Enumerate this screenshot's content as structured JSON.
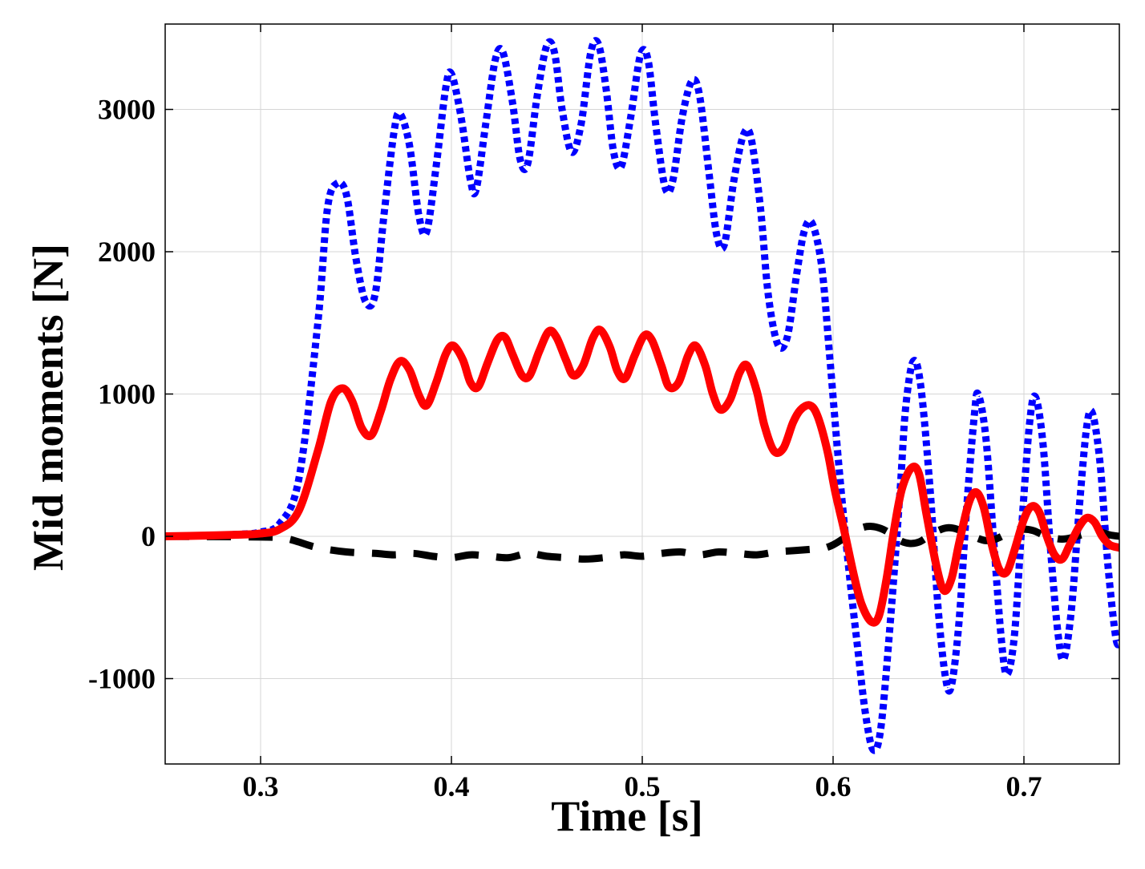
{
  "chart_data": {
    "type": "line",
    "title": "",
    "xlabel": "Time [s]",
    "ylabel": "Mid moments [N]",
    "xlim": [
      0.25,
      0.75
    ],
    "ylim": [
      -1600,
      3600
    ],
    "xticks": [
      0.3,
      0.4,
      0.5,
      0.6,
      0.7
    ],
    "xtick_labels": [
      "0.3",
      "0.4",
      "0.5",
      "0.6",
      "0.7"
    ],
    "yticks": [
      -1000,
      0,
      1000,
      2000,
      3000
    ],
    "ytick_labels": [
      "-1000",
      "0",
      "1000",
      "2000",
      "3000"
    ],
    "grid": true,
    "legend": "none",
    "series": [
      {
        "name": "blue dotted",
        "color": "#0000ff",
        "style": "dotted",
        "points": [
          [
            0.25,
            0
          ],
          [
            0.27,
            5
          ],
          [
            0.29,
            15
          ],
          [
            0.3,
            30
          ],
          [
            0.31,
            90
          ],
          [
            0.32,
            400
          ],
          [
            0.33,
            1500
          ],
          [
            0.335,
            2300
          ],
          [
            0.34,
            2480
          ],
          [
            0.345,
            2400
          ],
          [
            0.35,
            1950
          ],
          [
            0.355,
            1650
          ],
          [
            0.36,
            1700
          ],
          [
            0.365,
            2300
          ],
          [
            0.37,
            2850
          ],
          [
            0.373,
            2970
          ],
          [
            0.378,
            2750
          ],
          [
            0.383,
            2250
          ],
          [
            0.387,
            2140
          ],
          [
            0.392,
            2600
          ],
          [
            0.397,
            3150
          ],
          [
            0.4,
            3250
          ],
          [
            0.405,
            2950
          ],
          [
            0.41,
            2500
          ],
          [
            0.413,
            2440
          ],
          [
            0.418,
            2900
          ],
          [
            0.423,
            3350
          ],
          [
            0.427,
            3400
          ],
          [
            0.432,
            3050
          ],
          [
            0.436,
            2650
          ],
          [
            0.44,
            2620
          ],
          [
            0.445,
            3100
          ],
          [
            0.45,
            3450
          ],
          [
            0.454,
            3400
          ],
          [
            0.458,
            3000
          ],
          [
            0.463,
            2700
          ],
          [
            0.468,
            2900
          ],
          [
            0.473,
            3400
          ],
          [
            0.477,
            3460
          ],
          [
            0.481,
            3150
          ],
          [
            0.485,
            2700
          ],
          [
            0.489,
            2600
          ],
          [
            0.494,
            2950
          ],
          [
            0.499,
            3380
          ],
          [
            0.503,
            3350
          ],
          [
            0.507,
            2900
          ],
          [
            0.512,
            2450
          ],
          [
            0.516,
            2500
          ],
          [
            0.521,
            2950
          ],
          [
            0.526,
            3200
          ],
          [
            0.53,
            3100
          ],
          [
            0.535,
            2550
          ],
          [
            0.539,
            2120
          ],
          [
            0.543,
            2050
          ],
          [
            0.548,
            2500
          ],
          [
            0.553,
            2820
          ],
          [
            0.557,
            2800
          ],
          [
            0.562,
            2300
          ],
          [
            0.566,
            1700
          ],
          [
            0.571,
            1350
          ],
          [
            0.576,
            1400
          ],
          [
            0.581,
            1850
          ],
          [
            0.585,
            2150
          ],
          [
            0.589,
            2200
          ],
          [
            0.594,
            1900
          ],
          [
            0.598,
            1300
          ],
          [
            0.603,
            500
          ],
          [
            0.608,
            -200
          ],
          [
            0.613,
            -800
          ],
          [
            0.617,
            -1250
          ],
          [
            0.621,
            -1500
          ],
          [
            0.625,
            -1350
          ],
          [
            0.63,
            -600
          ],
          [
            0.635,
            300
          ],
          [
            0.638,
            900
          ],
          [
            0.642,
            1230
          ],
          [
            0.646,
            1050
          ],
          [
            0.651,
            300
          ],
          [
            0.655,
            -500
          ],
          [
            0.659,
            -1000
          ],
          [
            0.662,
            -1050
          ],
          [
            0.666,
            -600
          ],
          [
            0.67,
            200
          ],
          [
            0.674,
            850
          ],
          [
            0.676,
            1000
          ],
          [
            0.68,
            700
          ],
          [
            0.684,
            0
          ],
          [
            0.688,
            -700
          ],
          [
            0.691,
            -970
          ],
          [
            0.695,
            -700
          ],
          [
            0.699,
            100
          ],
          [
            0.703,
            800
          ],
          [
            0.706,
            980
          ],
          [
            0.71,
            650
          ],
          [
            0.714,
            -100
          ],
          [
            0.718,
            -700
          ],
          [
            0.721,
            -860
          ],
          [
            0.725,
            -500
          ],
          [
            0.729,
            200
          ],
          [
            0.733,
            780
          ],
          [
            0.736,
            860
          ],
          [
            0.74,
            500
          ],
          [
            0.744,
            -200
          ],
          [
            0.748,
            -700
          ],
          [
            0.75,
            -760
          ]
        ]
      },
      {
        "name": "red solid",
        "color": "#ff0000",
        "style": "solid",
        "points": [
          [
            0.25,
            0
          ],
          [
            0.27,
            5
          ],
          [
            0.29,
            12
          ],
          [
            0.3,
            20
          ],
          [
            0.31,
            50
          ],
          [
            0.32,
            180
          ],
          [
            0.33,
            600
          ],
          [
            0.337,
            950
          ],
          [
            0.343,
            1040
          ],
          [
            0.348,
            950
          ],
          [
            0.353,
            760
          ],
          [
            0.358,
            710
          ],
          [
            0.363,
            880
          ],
          [
            0.368,
            1100
          ],
          [
            0.373,
            1230
          ],
          [
            0.378,
            1170
          ],
          [
            0.383,
            990
          ],
          [
            0.387,
            920
          ],
          [
            0.392,
            1080
          ],
          [
            0.397,
            1280
          ],
          [
            0.401,
            1340
          ],
          [
            0.406,
            1240
          ],
          [
            0.41,
            1080
          ],
          [
            0.414,
            1050
          ],
          [
            0.419,
            1220
          ],
          [
            0.424,
            1380
          ],
          [
            0.428,
            1400
          ],
          [
            0.432,
            1280
          ],
          [
            0.437,
            1130
          ],
          [
            0.441,
            1130
          ],
          [
            0.446,
            1300
          ],
          [
            0.451,
            1440
          ],
          [
            0.455,
            1400
          ],
          [
            0.46,
            1240
          ],
          [
            0.464,
            1130
          ],
          [
            0.469,
            1200
          ],
          [
            0.474,
            1390
          ],
          [
            0.478,
            1450
          ],
          [
            0.483,
            1330
          ],
          [
            0.487,
            1160
          ],
          [
            0.491,
            1110
          ],
          [
            0.496,
            1270
          ],
          [
            0.501,
            1410
          ],
          [
            0.505,
            1380
          ],
          [
            0.51,
            1200
          ],
          [
            0.514,
            1050
          ],
          [
            0.519,
            1080
          ],
          [
            0.524,
            1270
          ],
          [
            0.528,
            1340
          ],
          [
            0.533,
            1200
          ],
          [
            0.537,
            1000
          ],
          [
            0.541,
            890
          ],
          [
            0.546,
            960
          ],
          [
            0.551,
            1150
          ],
          [
            0.555,
            1200
          ],
          [
            0.56,
            1020
          ],
          [
            0.564,
            780
          ],
          [
            0.569,
            600
          ],
          [
            0.574,
            620
          ],
          [
            0.579,
            800
          ],
          [
            0.583,
            890
          ],
          [
            0.588,
            920
          ],
          [
            0.592,
            840
          ],
          [
            0.597,
            600
          ],
          [
            0.601,
            320
          ],
          [
            0.606,
            30
          ],
          [
            0.611,
            -280
          ],
          [
            0.615,
            -480
          ],
          [
            0.62,
            -600
          ],
          [
            0.624,
            -560
          ],
          [
            0.628,
            -300
          ],
          [
            0.632,
            50
          ],
          [
            0.636,
            330
          ],
          [
            0.641,
            480
          ],
          [
            0.645,
            440
          ],
          [
            0.649,
            150
          ],
          [
            0.654,
            -200
          ],
          [
            0.658,
            -380
          ],
          [
            0.662,
            -300
          ],
          [
            0.666,
            -50
          ],
          [
            0.671,
            230
          ],
          [
            0.675,
            310
          ],
          [
            0.679,
            200
          ],
          [
            0.683,
            -50
          ],
          [
            0.687,
            -230
          ],
          [
            0.691,
            -250
          ],
          [
            0.695,
            -100
          ],
          [
            0.7,
            120
          ],
          [
            0.704,
            210
          ],
          [
            0.708,
            170
          ],
          [
            0.712,
            0
          ],
          [
            0.716,
            -130
          ],
          [
            0.72,
            -160
          ],
          [
            0.724,
            -60
          ],
          [
            0.729,
            70
          ],
          [
            0.733,
            130
          ],
          [
            0.737,
            100
          ],
          [
            0.741,
            0
          ],
          [
            0.745,
            -60
          ],
          [
            0.75,
            -80
          ]
        ]
      },
      {
        "name": "black dashed",
        "color": "#000000",
        "style": "dashed",
        "points": [
          [
            0.25,
            0
          ],
          [
            0.3,
            -5
          ],
          [
            0.31,
            -10
          ],
          [
            0.315,
            -20
          ],
          [
            0.32,
            -40
          ],
          [
            0.33,
            -80
          ],
          [
            0.345,
            -110
          ],
          [
            0.36,
            -120
          ],
          [
            0.37,
            -130
          ],
          [
            0.38,
            -120
          ],
          [
            0.39,
            -140
          ],
          [
            0.4,
            -150
          ],
          [
            0.41,
            -130
          ],
          [
            0.42,
            -140
          ],
          [
            0.43,
            -150
          ],
          [
            0.44,
            -120
          ],
          [
            0.45,
            -140
          ],
          [
            0.46,
            -150
          ],
          [
            0.47,
            -160
          ],
          [
            0.48,
            -150
          ],
          [
            0.49,
            -130
          ],
          [
            0.5,
            -140
          ],
          [
            0.51,
            -120
          ],
          [
            0.52,
            -110
          ],
          [
            0.53,
            -130
          ],
          [
            0.54,
            -110
          ],
          [
            0.55,
            -120
          ],
          [
            0.56,
            -130
          ],
          [
            0.57,
            -110
          ],
          [
            0.58,
            -100
          ],
          [
            0.59,
            -90
          ],
          [
            0.595,
            -85
          ],
          [
            0.6,
            -60
          ],
          [
            0.605,
            -20
          ],
          [
            0.61,
            20
          ],
          [
            0.615,
            60
          ],
          [
            0.62,
            70
          ],
          [
            0.625,
            55
          ],
          [
            0.63,
            20
          ],
          [
            0.635,
            -30
          ],
          [
            0.64,
            -50
          ],
          [
            0.645,
            -40
          ],
          [
            0.65,
            0
          ],
          [
            0.655,
            40
          ],
          [
            0.66,
            60
          ],
          [
            0.665,
            50
          ],
          [
            0.67,
            20
          ],
          [
            0.675,
            -10
          ],
          [
            0.68,
            -30
          ],
          [
            0.685,
            -20
          ],
          [
            0.69,
            10
          ],
          [
            0.695,
            40
          ],
          [
            0.7,
            50
          ],
          [
            0.705,
            40
          ],
          [
            0.71,
            10
          ],
          [
            0.715,
            -10
          ],
          [
            0.72,
            -20
          ],
          [
            0.725,
            -10
          ],
          [
            0.73,
            10
          ],
          [
            0.735,
            30
          ],
          [
            0.74,
            30
          ],
          [
            0.745,
            10
          ],
          [
            0.75,
            0
          ]
        ]
      }
    ]
  }
}
